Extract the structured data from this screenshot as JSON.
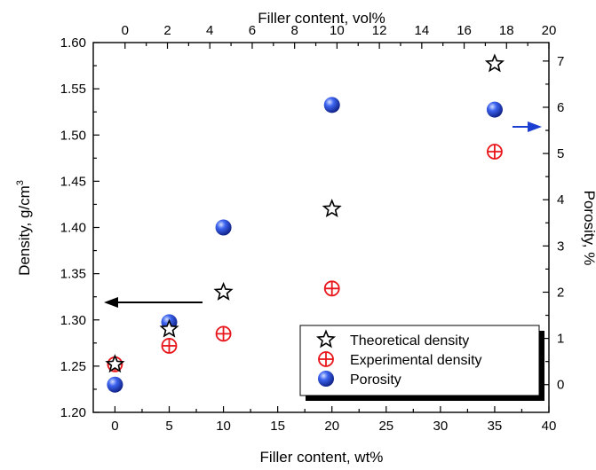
{
  "chart_data": {
    "type": "scatter",
    "xlabel_bottom": "Filler content, wt%",
    "xlabel_top": "Filler content, vol%",
    "ylabel_left": "Density, g/cm",
    "ylabel_left_sup": "3",
    "ylabel_right": "Porosity, %",
    "xlim_bottom": [
      -2,
      40
    ],
    "xlim_top": [
      -1.5,
      20
    ],
    "ylim_left": [
      1.2,
      1.6
    ],
    "ylim_right": [
      -0.6,
      7.4
    ],
    "x_ticks_bottom": [
      0,
      5,
      10,
      15,
      20,
      25,
      30,
      35,
      40
    ],
    "x_ticks_top": [
      0,
      2,
      4,
      6,
      8,
      10,
      12,
      14,
      16,
      18,
      20
    ],
    "y_ticks_left": [
      "1.20",
      "1.25",
      "1.30",
      "1.35",
      "1.40",
      "1.45",
      "1.50",
      "1.55",
      "1.60"
    ],
    "y_ticks_right": [
      0,
      1,
      2,
      3,
      4,
      5,
      6,
      7
    ],
    "grid": false,
    "legend_position": "bottom-right",
    "series": [
      {
        "name": "Theoretical density",
        "axis": "left",
        "marker": "star",
        "color": "#000000",
        "x": [
          0,
          5,
          10,
          20,
          35
        ],
        "y": [
          1.252,
          1.29,
          1.33,
          1.42,
          1.577
        ]
      },
      {
        "name": "Experimental density",
        "axis": "left",
        "marker": "circle-plus",
        "color": "#e8161b",
        "x": [
          0,
          5,
          10,
          20,
          35
        ],
        "y": [
          1.252,
          1.272,
          1.285,
          1.334,
          1.482
        ]
      },
      {
        "name": "Porosity",
        "axis": "right",
        "marker": "sphere",
        "color": "#1b3fd0",
        "x": [
          0,
          5,
          10,
          20,
          35
        ],
        "y": [
          0,
          1.35,
          3.4,
          6.05,
          5.95
        ]
      }
    ],
    "annotations": [
      {
        "type": "arrow",
        "direction": "left",
        "color": "#000000",
        "meaning": "theoretical/experimental density on left axis"
      },
      {
        "type": "arrow",
        "direction": "right",
        "color": "#1b3fd0",
        "meaning": "porosity on right axis"
      }
    ]
  }
}
